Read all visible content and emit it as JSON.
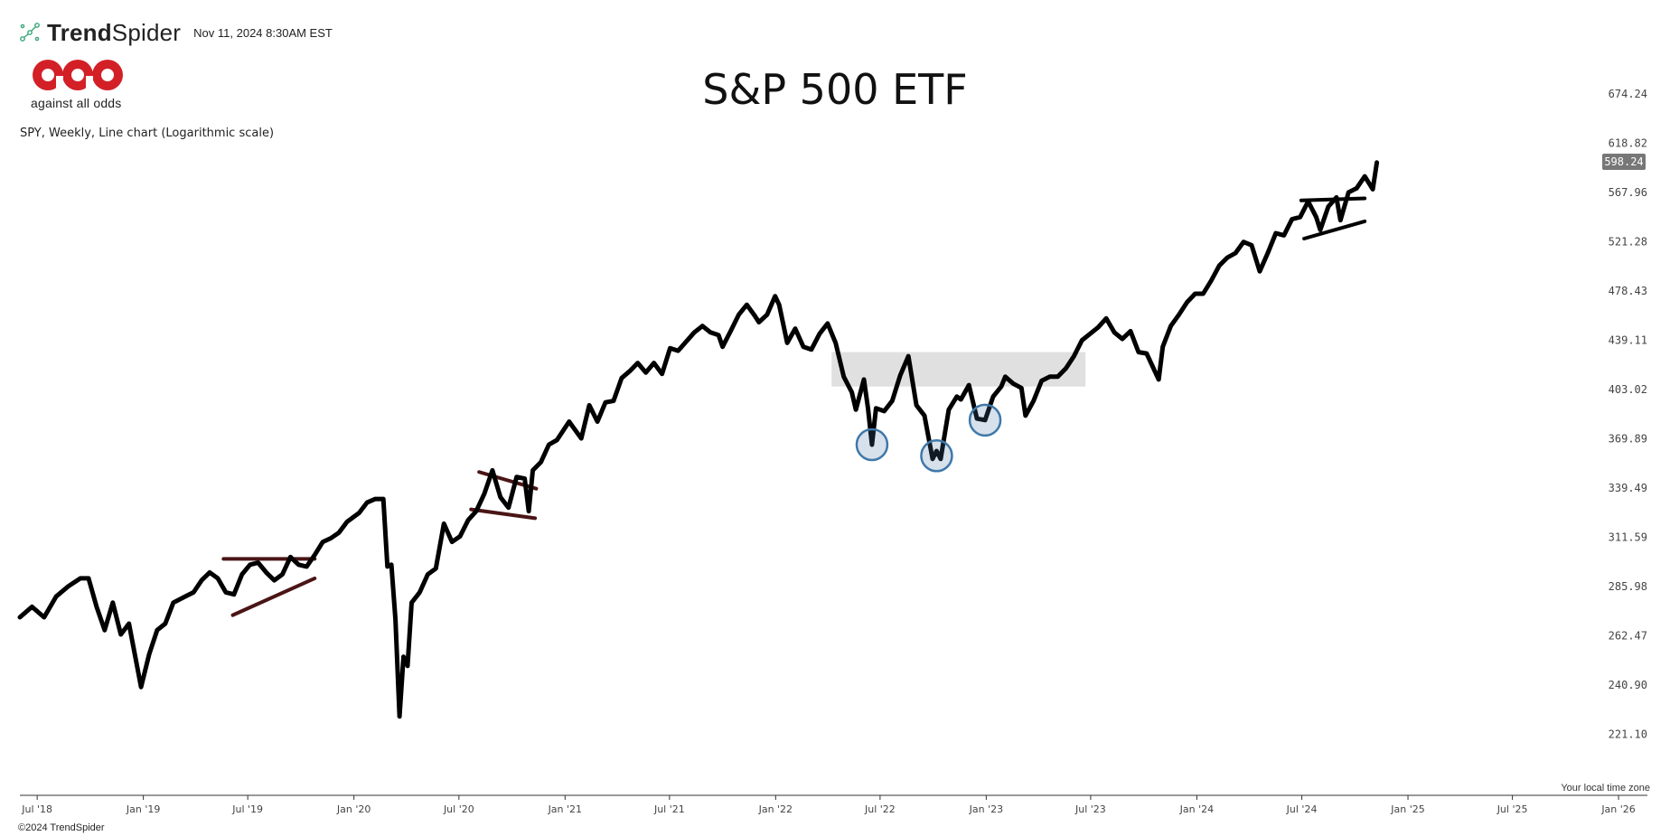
{
  "header": {
    "brand_name_bold": "Trend",
    "brand_name_light": "Spider",
    "timestamp": "Nov 11, 2024 8:30AM EST"
  },
  "logo": {
    "tagline": "against all odds",
    "mark_text": "aao",
    "mark_color": "#d32027"
  },
  "footer": {
    "copyright": "©2024 TrendSpider"
  },
  "chart_data": {
    "type": "line",
    "title": "S&P 500 ETF",
    "subtitle": "SPY, Weekly, Line chart (Logarithmic scale)",
    "y_scale": "log",
    "ylim": [
      210,
      700
    ],
    "x_range": [
      "2018-06-01",
      "2026-01-15"
    ],
    "y_ticks": [
      "221.10",
      "240.90",
      "262.47",
      "285.98",
      "311.59",
      "339.49",
      "369.89",
      "403.02",
      "439.11",
      "478.43",
      "521.28",
      "567.96",
      "618.82",
      "674.24"
    ],
    "x_ticks": [
      {
        "label": "Jul '18",
        "date": "2018-07-01"
      },
      {
        "label": "Jan '19",
        "date": "2019-01-01"
      },
      {
        "label": "Jul '19",
        "date": "2019-07-01"
      },
      {
        "label": "Jan '20",
        "date": "2020-01-01"
      },
      {
        "label": "Jul '20",
        "date": "2020-07-01"
      },
      {
        "label": "Jan '21",
        "date": "2021-01-01"
      },
      {
        "label": "Jul '21",
        "date": "2021-07-01"
      },
      {
        "label": "Jan '22",
        "date": "2022-01-01"
      },
      {
        "label": "Jul '22",
        "date": "2022-07-01"
      },
      {
        "label": "Jan '23",
        "date": "2023-01-01"
      },
      {
        "label": "Jul '23",
        "date": "2023-07-01"
      },
      {
        "label": "Jan '24",
        "date": "2024-01-01"
      },
      {
        "label": "Jul '24",
        "date": "2024-07-01"
      },
      {
        "label": "Jan '25",
        "date": "2025-01-01"
      },
      {
        "label": "Jul '25",
        "date": "2025-07-01"
      },
      {
        "label": "Jan '26",
        "date": "2026-01-01"
      }
    ],
    "last_price_label": "598.24",
    "timezone_note": "Your local time zone",
    "line_color": "#000000",
    "series": [
      {
        "points": [
          [
            "2018-06-01",
            271
          ],
          [
            "2018-06-22",
            276
          ],
          [
            "2018-07-13",
            271
          ],
          [
            "2018-08-03",
            281
          ],
          [
            "2018-08-24",
            286
          ],
          [
            "2018-09-14",
            290
          ],
          [
            "2018-09-28",
            290
          ],
          [
            "2018-10-12",
            276
          ],
          [
            "2018-10-26",
            265
          ],
          [
            "2018-11-09",
            278
          ],
          [
            "2018-11-23",
            263
          ],
          [
            "2018-12-07",
            268
          ],
          [
            "2018-12-28",
            240
          ],
          [
            "2019-01-11",
            254
          ],
          [
            "2019-01-25",
            265
          ],
          [
            "2019-02-08",
            268
          ],
          [
            "2019-02-22",
            278
          ],
          [
            "2019-03-15",
            281
          ],
          [
            "2019-03-29",
            283
          ],
          [
            "2019-04-12",
            289
          ],
          [
            "2019-04-26",
            293
          ],
          [
            "2019-05-10",
            290
          ],
          [
            "2019-05-24",
            283
          ],
          [
            "2019-06-07",
            282
          ],
          [
            "2019-06-21",
            292
          ],
          [
            "2019-07-05",
            297
          ],
          [
            "2019-07-19",
            298
          ],
          [
            "2019-08-02",
            293
          ],
          [
            "2019-08-16",
            289
          ],
          [
            "2019-08-30",
            292
          ],
          [
            "2019-09-13",
            301
          ],
          [
            "2019-09-27",
            297
          ],
          [
            "2019-10-11",
            296
          ],
          [
            "2019-10-25",
            302
          ],
          [
            "2019-11-08",
            309
          ],
          [
            "2019-11-22",
            311
          ],
          [
            "2019-12-06",
            314
          ],
          [
            "2019-12-20",
            320
          ],
          [
            "2020-01-10",
            325
          ],
          [
            "2020-01-24",
            331
          ],
          [
            "2020-02-07",
            333
          ],
          [
            "2020-02-21",
            333
          ],
          [
            "2020-02-28",
            296
          ],
          [
            "2020-03-06",
            297
          ],
          [
            "2020-03-13",
            270
          ],
          [
            "2020-03-20",
            228
          ],
          [
            "2020-03-27",
            253
          ],
          [
            "2020-04-03",
            249
          ],
          [
            "2020-04-10",
            278
          ],
          [
            "2020-04-24",
            283
          ],
          [
            "2020-05-08",
            292
          ],
          [
            "2020-05-22",
            295
          ],
          [
            "2020-06-05",
            319
          ],
          [
            "2020-06-19",
            309
          ],
          [
            "2020-07-03",
            312
          ],
          [
            "2020-07-17",
            321
          ],
          [
            "2020-07-31",
            326
          ],
          [
            "2020-08-14",
            336
          ],
          [
            "2020-08-28",
            350
          ],
          [
            "2020-09-11",
            334
          ],
          [
            "2020-09-25",
            328
          ],
          [
            "2020-10-09",
            346
          ],
          [
            "2020-10-23",
            345
          ],
          [
            "2020-10-30",
            326
          ],
          [
            "2020-11-06",
            350
          ],
          [
            "2020-11-20",
            355
          ],
          [
            "2020-12-04",
            366
          ],
          [
            "2020-12-18",
            369
          ],
          [
            "2021-01-08",
            381
          ],
          [
            "2021-01-29",
            370
          ],
          [
            "2021-02-12",
            392
          ],
          [
            "2021-02-26",
            381
          ],
          [
            "2021-03-12",
            394
          ],
          [
            "2021-03-26",
            395
          ],
          [
            "2021-04-09",
            411
          ],
          [
            "2021-04-23",
            416
          ],
          [
            "2021-05-07",
            422
          ],
          [
            "2021-05-21",
            415
          ],
          [
            "2021-06-04",
            422
          ],
          [
            "2021-06-18",
            414
          ],
          [
            "2021-07-02",
            433
          ],
          [
            "2021-07-16",
            431
          ],
          [
            "2021-07-30",
            438
          ],
          [
            "2021-08-13",
            445
          ],
          [
            "2021-08-27",
            450
          ],
          [
            "2021-09-10",
            445
          ],
          [
            "2021-09-24",
            443
          ],
          [
            "2021-10-01",
            434
          ],
          [
            "2021-10-15",
            446
          ],
          [
            "2021-10-29",
            459
          ],
          [
            "2021-11-12",
            467
          ],
          [
            "2021-11-26",
            458
          ],
          [
            "2021-12-03",
            453
          ],
          [
            "2021-12-17",
            459
          ],
          [
            "2021-12-31",
            474
          ],
          [
            "2022-01-07",
            467
          ],
          [
            "2022-01-21",
            437
          ],
          [
            "2022-02-04",
            448
          ],
          [
            "2022-02-18",
            434
          ],
          [
            "2022-03-04",
            432
          ],
          [
            "2022-03-18",
            444
          ],
          [
            "2022-04-01",
            452
          ],
          [
            "2022-04-15",
            437
          ],
          [
            "2022-04-29",
            412
          ],
          [
            "2022-05-13",
            401
          ],
          [
            "2022-05-20",
            389
          ],
          [
            "2022-06-03",
            410
          ],
          [
            "2022-06-10",
            390
          ],
          [
            "2022-06-17",
            366
          ],
          [
            "2022-06-24",
            390
          ],
          [
            "2022-07-08",
            388
          ],
          [
            "2022-07-22",
            395
          ],
          [
            "2022-08-05",
            413
          ],
          [
            "2022-08-19",
            427
          ],
          [
            "2022-09-02",
            392
          ],
          [
            "2022-09-16",
            385
          ],
          [
            "2022-09-30",
            357
          ],
          [
            "2022-10-07",
            362
          ],
          [
            "2022-10-14",
            357
          ],
          [
            "2022-10-28",
            389
          ],
          [
            "2022-11-11",
            398
          ],
          [
            "2022-11-18",
            396
          ],
          [
            "2022-12-02",
            406
          ],
          [
            "2022-12-16",
            383
          ],
          [
            "2022-12-30",
            382
          ],
          [
            "2023-01-13",
            398
          ],
          [
            "2023-01-27",
            405
          ],
          [
            "2023-02-03",
            412
          ],
          [
            "2023-02-17",
            407
          ],
          [
            "2023-03-03",
            404
          ],
          [
            "2023-03-10",
            385
          ],
          [
            "2023-03-24",
            395
          ],
          [
            "2023-04-07",
            409
          ],
          [
            "2023-04-21",
            412
          ],
          [
            "2023-05-05",
            412
          ],
          [
            "2023-05-19",
            418
          ],
          [
            "2023-06-02",
            427
          ],
          [
            "2023-06-16",
            439
          ],
          [
            "2023-06-30",
            444
          ],
          [
            "2023-07-14",
            449
          ],
          [
            "2023-07-28",
            456
          ],
          [
            "2023-08-11",
            445
          ],
          [
            "2023-08-25",
            440
          ],
          [
            "2023-09-08",
            446
          ],
          [
            "2023-09-22",
            430
          ],
          [
            "2023-10-06",
            429
          ],
          [
            "2023-10-27",
            410
          ],
          [
            "2023-11-03",
            434
          ],
          [
            "2023-11-17",
            450
          ],
          [
            "2023-12-01",
            459
          ],
          [
            "2023-12-15",
            469
          ],
          [
            "2023-12-29",
            476
          ],
          [
            "2024-01-12",
            476
          ],
          [
            "2024-01-26",
            487
          ],
          [
            "2024-02-09",
            500
          ],
          [
            "2024-02-23",
            507
          ],
          [
            "2024-03-08",
            511
          ],
          [
            "2024-03-22",
            521
          ],
          [
            "2024-04-05",
            518
          ],
          [
            "2024-04-19",
            495
          ],
          [
            "2024-05-03",
            511
          ],
          [
            "2024-05-17",
            529
          ],
          [
            "2024-05-31",
            527
          ],
          [
            "2024-06-14",
            542
          ],
          [
            "2024-06-28",
            544
          ],
          [
            "2024-07-12",
            559
          ],
          [
            "2024-07-26",
            544
          ],
          [
            "2024-08-02",
            532
          ],
          [
            "2024-08-16",
            554
          ],
          [
            "2024-08-30",
            563
          ],
          [
            "2024-09-06",
            541
          ],
          [
            "2024-09-20",
            568
          ],
          [
            "2024-10-04",
            572
          ],
          [
            "2024-10-18",
            584
          ],
          [
            "2024-11-01",
            571
          ],
          [
            "2024-11-08",
            598.24
          ]
        ]
      }
    ],
    "annotations": {
      "highlight_zone": {
        "x_start": "2022-04-08",
        "x_end": "2023-06-22",
        "y_low": 405,
        "y_high": 430,
        "color": "#e0e0e0"
      },
      "circles": [
        {
          "date": "2022-06-17",
          "value": 366
        },
        {
          "date": "2022-10-07",
          "value": 359
        },
        {
          "date": "2022-12-30",
          "value": 382
        }
      ],
      "trendlines": [
        {
          "color": "#4a1515",
          "from": [
            "2019-05-20",
            300
          ],
          "to": [
            "2019-10-25",
            300
          ]
        },
        {
          "color": "#4a1515",
          "from": [
            "2019-06-05",
            272
          ],
          "to": [
            "2019-10-25",
            290
          ]
        },
        {
          "color": "#4a1515",
          "from": [
            "2020-07-22",
            327
          ],
          "to": [
            "2020-11-10",
            322
          ]
        },
        {
          "color": "#4a1515",
          "from": [
            "2020-08-05",
            349
          ],
          "to": [
            "2020-11-12",
            339
          ]
        },
        {
          "color": "#000000",
          "from": [
            "2024-06-30",
            560
          ],
          "to": [
            "2024-10-18",
            562
          ]
        },
        {
          "color": "#000000",
          "from": [
            "2024-07-05",
            524
          ],
          "to": [
            "2024-10-18",
            540
          ]
        }
      ]
    }
  }
}
